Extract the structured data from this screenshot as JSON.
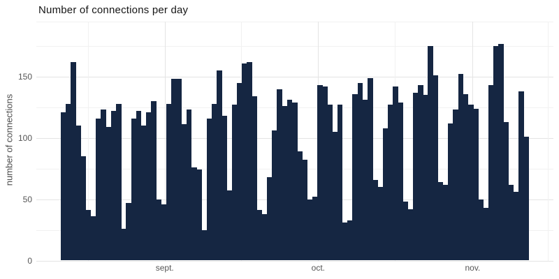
{
  "title": "Number of connections per day",
  "y_axis": {
    "label": "number of connections",
    "ticks": [
      "0",
      "50",
      "100",
      "150"
    ]
  },
  "x_axis": {
    "ticks": [
      "sept.",
      "oct.",
      "nov."
    ]
  },
  "colors": {
    "bar": "#152642",
    "grid_major": "#e4e4e4",
    "grid_minor": "#f1f1f1",
    "axis_text": "#555555",
    "title_text": "#151515"
  },
  "chart_data": {
    "type": "bar",
    "title": "Number of connections per day",
    "xlabel": "",
    "ylabel": "number of connections",
    "ylim": [
      0,
      195
    ],
    "grid": true,
    "y_major_breaks": [
      0,
      50,
      100,
      150
    ],
    "y_minor_breaks": [
      25,
      75,
      125,
      175,
      195
    ],
    "x_ticks": [
      {
        "label": "sept.",
        "day": 20.7
      },
      {
        "label": "oct.",
        "day": 51.2
      },
      {
        "label": "nov.",
        "day": 81.9
      }
    ],
    "x_minor_days": [
      5.4,
      35.9,
      66.4,
      96.9
    ],
    "values": [
      121,
      128,
      162,
      110,
      85,
      41,
      36,
      116,
      123,
      109,
      122,
      128,
      26,
      47,
      116,
      122,
      110,
      121,
      130,
      50,
      46,
      128,
      148,
      148,
      111,
      123,
      76,
      74,
      25,
      116,
      128,
      155,
      118,
      57,
      127,
      145,
      161,
      162,
      134,
      41,
      38,
      68,
      106,
      140,
      126,
      131,
      129,
      89,
      82,
      50,
      52,
      143,
      142,
      127,
      105,
      127,
      31,
      33,
      136,
      145,
      131,
      149,
      66,
      60,
      108,
      127,
      142,
      129,
      48,
      42,
      137,
      143,
      135,
      175,
      151,
      64,
      62,
      112,
      123,
      152,
      136,
      127,
      124,
      50,
      43,
      143,
      175,
      177,
      113,
      62,
      56,
      138,
      101
    ]
  }
}
